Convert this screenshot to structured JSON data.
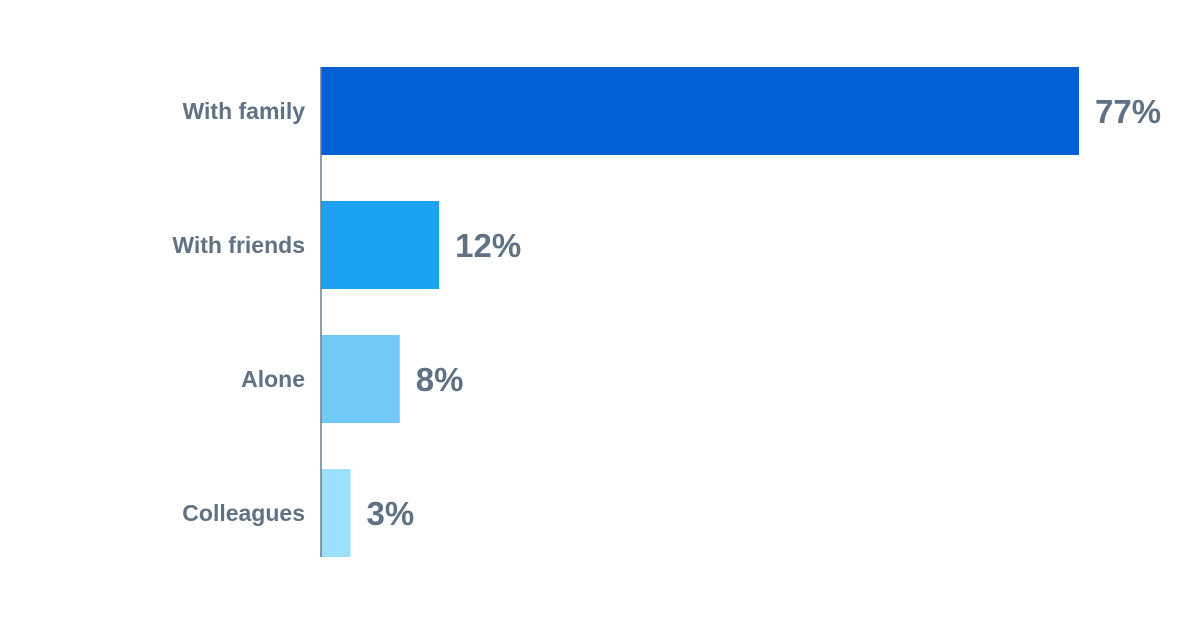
{
  "chart_data": {
    "type": "bar",
    "orientation": "horizontal",
    "title": "",
    "xlabel": "",
    "ylabel": "",
    "categories": [
      "With family",
      "With friends",
      "Alone",
      "Colleagues"
    ],
    "values": [
      77,
      12,
      8,
      3
    ],
    "value_labels": [
      "77%",
      "12%",
      "8%",
      "3%"
    ],
    "colors": [
      "#0061d5",
      "#1da1f2",
      "#71c9f8",
      "#9be1ff"
    ],
    "unit": "%",
    "xlim": [
      0,
      77
    ],
    "grid": false,
    "axis_color": "#6b7b8a",
    "label_color": "#5f7183"
  }
}
